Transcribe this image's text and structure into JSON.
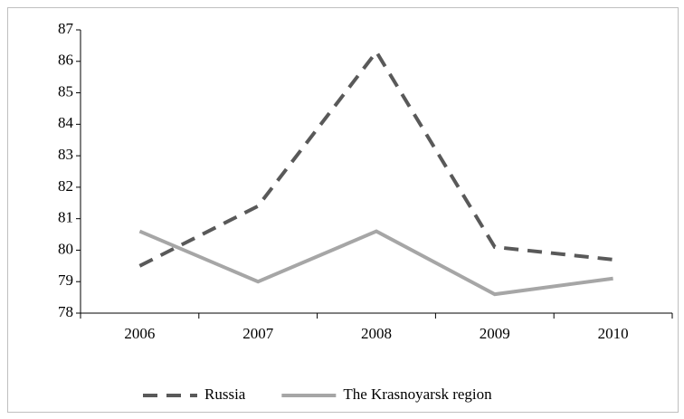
{
  "chart_data": {
    "type": "line",
    "categories": [
      "2006",
      "2007",
      "2008",
      "2009",
      "2010"
    ],
    "series": [
      {
        "name": "Russia",
        "color": "#595959",
        "line_style": "dashed",
        "values": [
          79.5,
          81.4,
          86.3,
          80.1,
          79.7
        ]
      },
      {
        "name": "The Krasnoyarsk region",
        "color": "#a6a6a6",
        "line_style": "solid",
        "values": [
          80.6,
          79.0,
          80.6,
          78.6,
          79.1
        ]
      }
    ],
    "ylim": [
      78,
      87
    ],
    "yticks": [
      78,
      79,
      80,
      81,
      82,
      83,
      84,
      85,
      86,
      87
    ],
    "grid": false,
    "legend": "bottom"
  }
}
